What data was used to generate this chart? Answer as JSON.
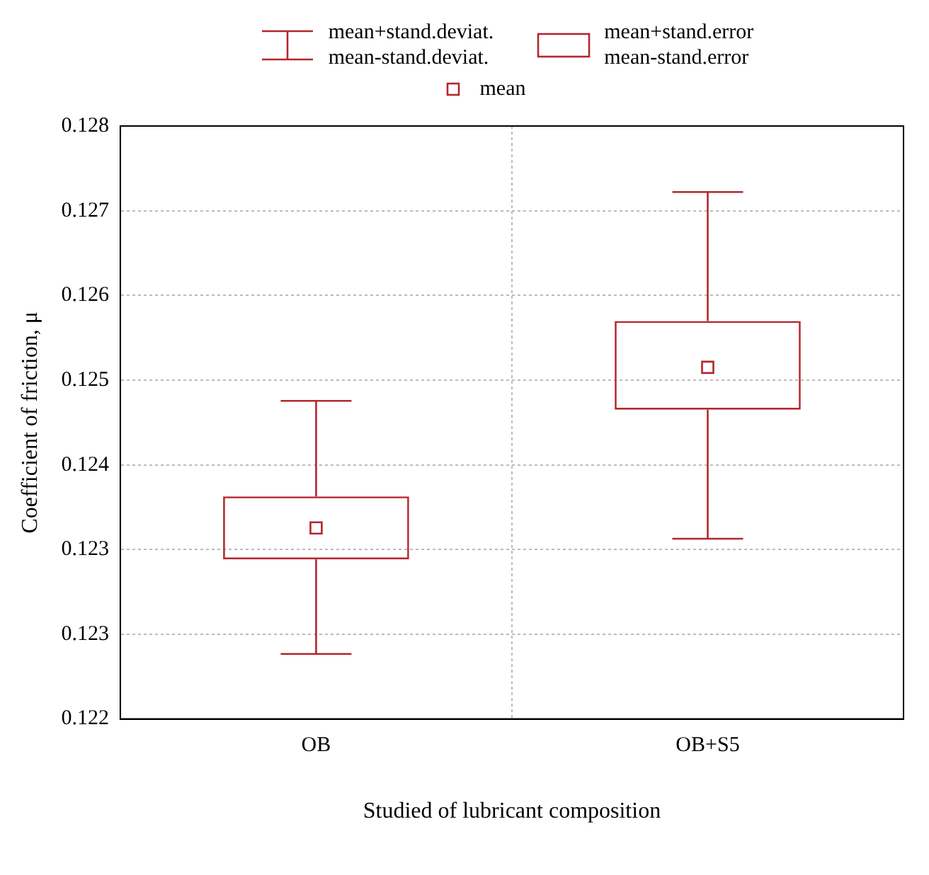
{
  "chart_data": {
    "type": "box",
    "xlabel": "Studied of lubricant composition",
    "ylabel": "Coefficient of friction, μ",
    "categories": [
      "OB",
      "OB+S5"
    ],
    "boxes": [
      {
        "low": 0.12236,
        "q1": 0.12332,
        "median": 0.12364,
        "q3": 0.12396,
        "high": 0.12493
      },
      {
        "low": 0.12353,
        "q1": 0.12484,
        "median": 0.12527,
        "q3": 0.12574,
        "high": 0.12705
      }
    ],
    "color": "#b5262e",
    "ylim": [
      0.1217,
      0.12772
    ],
    "yticks": [
      {
        "value": 0.1217,
        "label": "0.122"
      },
      {
        "value": 0.12256,
        "label": "0.123"
      },
      {
        "value": 0.12342,
        "label": "0.123"
      },
      {
        "value": 0.12428,
        "label": "0.124"
      },
      {
        "value": 0.12514,
        "label": "0.125"
      },
      {
        "value": 0.126,
        "label": "0.126"
      },
      {
        "value": 0.12686,
        "label": "0.127"
      },
      {
        "value": 0.12772,
        "label": "0.128"
      }
    ],
    "grid": true,
    "annotations": [
      "mean+stand.deviat.",
      "mean-stand.deviat.",
      "mean+stand.error",
      "mean-stand.error",
      "mean"
    ]
  }
}
